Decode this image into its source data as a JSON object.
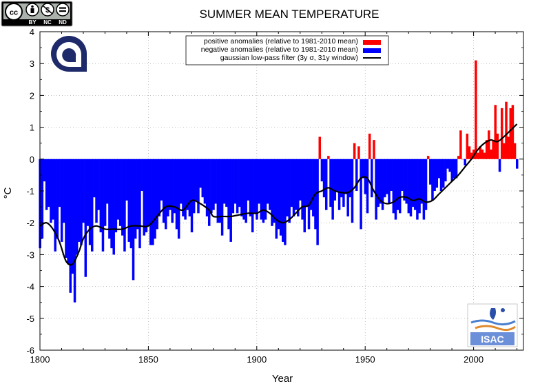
{
  "header": {
    "license_badge": {
      "icon": "cc-by-nc-nd-badge",
      "cc": "cc",
      "tags": [
        "BY",
        "NC",
        "ND"
      ]
    },
    "logo_left": {
      "icon": "cnr-logo"
    },
    "logo_right": {
      "icon": "isac-logo",
      "text": "ISAC"
    }
  },
  "chart_data": {
    "type": "bar",
    "title": "SUMMER MEAN TEMPERATURE",
    "xlabel": "Year",
    "ylabel": "°C",
    "xlim": [
      1800,
      2023
    ],
    "ylim": [
      -6,
      4
    ],
    "x_ticks": [
      1800,
      1850,
      1900,
      1950,
      2000
    ],
    "y_ticks": [
      -6,
      -5,
      -4,
      -3,
      -2,
      -1,
      0,
      1,
      2,
      3,
      4
    ],
    "grid": true,
    "legend_position": "top-center",
    "colors": {
      "positive": "#ff0000",
      "negative": "#0000ff",
      "filter": "#000000"
    },
    "legend": [
      {
        "label": "positive anomalies (relative to 1981-2010 mean)",
        "color": "#ff0000",
        "kind": "bar"
      },
      {
        "label": "negative anomalies (relative to 1981-2010 mean)",
        "color": "#0000ff",
        "kind": "bar"
      },
      {
        "label": "gaussian low-pass filter (3y σ, 31y window)",
        "color": "#000000",
        "kind": "line"
      }
    ],
    "series": [
      {
        "name": "anomalies",
        "start_year": 1800,
        "values": [
          -2.8,
          -2.5,
          -0.7,
          -1.6,
          -1.5,
          -2.0,
          -1.9,
          -2.9,
          -2.5,
          -1.5,
          -2.6,
          -2.0,
          -3.1,
          -3.3,
          -4.2,
          -3.6,
          -4.5,
          -3.0,
          -2.6,
          -2.7,
          -2.0,
          -3.7,
          -2.1,
          -2.7,
          -2.9,
          -1.2,
          -2.0,
          -1.6,
          -2.3,
          -2.9,
          -2.1,
          -1.4,
          -2.5,
          -2.8,
          -3.0,
          -2.3,
          -1.9,
          -2.1,
          -2.4,
          -2.9,
          -1.3,
          -2.6,
          -2.8,
          -3.8,
          -2.5,
          -2.2,
          -2.8,
          -1.0,
          -2.4,
          -2.3,
          -2.1,
          -2.7,
          -2.7,
          -2.5,
          -2.2,
          -1.8,
          -1.3,
          -2.0,
          -2.2,
          -1.8,
          -1.6,
          -2.0,
          -1.7,
          -2.2,
          -2.5,
          -1.4,
          -1.8,
          -1.9,
          -1.6,
          -1.8,
          -2.3,
          -1.7,
          -1.3,
          -1.7,
          -0.9,
          -1.2,
          -1.4,
          -1.8,
          -2.1,
          -1.7,
          -1.6,
          -1.4,
          -2.0,
          -2.0,
          -2.4,
          -1.4,
          -1.5,
          -2.2,
          -2.6,
          -1.7,
          -1.4,
          -1.7,
          -1.5,
          -1.8,
          -1.9,
          -2.0,
          -1.3,
          -1.8,
          -2.3,
          -1.7,
          -1.9,
          -1.4,
          -1.9,
          -2.0,
          -1.9,
          -1.4,
          -1.6,
          -2.1,
          -2.0,
          -2.5,
          -2.2,
          -2.4,
          -2.6,
          -2.7,
          -1.8,
          -2.0,
          -1.5,
          -1.8,
          -1.6,
          -1.8,
          -1.3,
          -1.9,
          -2.3,
          -1.5,
          -2.2,
          -1.6,
          -1.8,
          -2.2,
          -2.7,
          0.7,
          -0.7,
          -1.2,
          -1.6,
          0.1,
          -1.5,
          -1.9,
          -1.3,
          -1.0,
          -1.6,
          -1.2,
          -1.5,
          -1.1,
          -1.8,
          -1.2,
          -2.0,
          0.5,
          -1.0,
          0.4,
          -2.2,
          -0.6,
          -1.1,
          -1.7,
          0.8,
          -1.2,
          0.6,
          -1.9,
          -1.5,
          -1.4,
          -1.6,
          -1.2,
          -1.1,
          -1.4,
          -1.0,
          -1.7,
          -1.9,
          -1.6,
          -1.7,
          -1.0,
          -1.3,
          -1.4,
          -1.7,
          -1.8,
          -1.5,
          -1.6,
          -1.9,
          -1.7,
          -1.4,
          -1.9,
          -1.6,
          0.1,
          -0.8,
          -1.3,
          -1.0,
          -0.9,
          -0.6,
          -1.0,
          -0.9,
          -0.7,
          -0.3,
          -0.4,
          -0.7,
          -0.6,
          -0.6,
          0.1,
          0.9,
          0.0,
          -0.2,
          0.8,
          0.4,
          0.2,
          0.3,
          3.1,
          0.2,
          0.4,
          0.3,
          0.2,
          0.6,
          0.9,
          0.3,
          0.6,
          1.7,
          0.8,
          -0.4,
          1.6,
          0.5,
          1.8,
          0.7,
          1.6,
          1.7,
          0.5,
          -0.3
        ]
      },
      {
        "name": "filter",
        "x": [
          1800,
          1803,
          1806,
          1809,
          1812,
          1815,
          1818,
          1820,
          1823,
          1826,
          1830,
          1834,
          1838,
          1842,
          1846,
          1850,
          1854,
          1858,
          1862,
          1866,
          1870,
          1874,
          1878,
          1880,
          1884,
          1888,
          1892,
          1896,
          1900,
          1903,
          1906,
          1909,
          1912,
          1915,
          1918,
          1921,
          1924,
          1927,
          1930,
          1933,
          1936,
          1939,
          1942,
          1945,
          1948,
          1951,
          1954,
          1957,
          1960,
          1963,
          1966,
          1969,
          1972,
          1975,
          1978,
          1981,
          1984,
          1987,
          1990,
          1993,
          1996,
          1999,
          2002,
          2005,
          2008,
          2011,
          2014,
          2017,
          2020
        ],
        "values": [
          -2.1,
          -2.0,
          -2.2,
          -2.6,
          -3.2,
          -3.3,
          -2.9,
          -2.5,
          -2.2,
          -2.1,
          -2.2,
          -2.2,
          -2.2,
          -2.1,
          -2.1,
          -2.1,
          -1.8,
          -1.5,
          -1.5,
          -1.6,
          -1.3,
          -1.4,
          -1.6,
          -1.8,
          -1.8,
          -1.8,
          -1.75,
          -1.7,
          -1.7,
          -1.6,
          -1.7,
          -1.9,
          -2.0,
          -1.9,
          -1.7,
          -1.5,
          -1.45,
          -1.1,
          -1.0,
          -0.9,
          -1.0,
          -1.05,
          -1.05,
          -0.9,
          -0.6,
          -0.6,
          -1.0,
          -1.3,
          -1.4,
          -1.35,
          -1.2,
          -1.2,
          -1.3,
          -1.25,
          -1.35,
          -1.3,
          -1.1,
          -0.9,
          -0.7,
          -0.5,
          -0.25,
          0.0,
          0.3,
          0.5,
          0.6,
          0.55,
          0.7,
          0.9,
          1.1
        ]
      }
    ]
  }
}
